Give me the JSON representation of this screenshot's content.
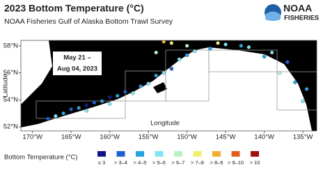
{
  "header": {
    "title": "2023 Bottom Temperature (°C)",
    "subtitle": "NOAA Fisheries Gulf of Alaska Bottom Trawl Survey",
    "logo_top": "NOAA",
    "logo_bottom": "FISHERIES"
  },
  "map": {
    "annotation_line1": "May 21 –",
    "annotation_line2": "Aug 04, 2023",
    "x_label": "Longitude",
    "y_label": "Latitude",
    "xlim": [
      -171.5,
      -133.2
    ],
    "ylim": [
      51.7,
      58.4
    ],
    "xticks": [
      {
        "value": -170,
        "label": "170°W"
      },
      {
        "value": -165,
        "label": "165°W"
      },
      {
        "value": -160,
        "label": "160°W"
      },
      {
        "value": -155,
        "label": "155°W"
      },
      {
        "value": -150,
        "label": "150°W"
      },
      {
        "value": -145,
        "label": "145°W"
      },
      {
        "value": -140,
        "label": "140°W"
      },
      {
        "value": -135,
        "label": "135°W"
      }
    ],
    "yticks": [
      {
        "value": 52,
        "label": "52°N"
      },
      {
        "value": 54,
        "label": "54°N"
      },
      {
        "value": 56,
        "label": "56°N"
      },
      {
        "value": 58,
        "label": "58°N"
      }
    ]
  },
  "legend": {
    "title": "Bottom Temperature (°C)",
    "items": [
      {
        "label": "≤ 3",
        "color": "#14148a",
        "stations": [
          [
            -163,
            53.6
          ],
          [
            -160,
            54.2
          ]
        ]
      },
      {
        "label": "> 3–4",
        "color": "#1f5fd0",
        "stations": [
          [
            -168,
            52.6
          ],
          [
            -165,
            53.3
          ],
          [
            -162,
            53.8
          ],
          [
            -158,
            54.6
          ],
          [
            -152,
            56.3
          ],
          [
            -137,
            56.8
          ]
        ]
      },
      {
        "label": "> 4–5",
        "color": "#2aa3e2",
        "stations": [
          [
            -166,
            53.0
          ],
          [
            -164,
            53.4
          ],
          [
            -161,
            53.9
          ],
          [
            -159,
            54.3
          ],
          [
            -156,
            55.0
          ],
          [
            -154,
            55.8
          ],
          [
            -150,
            57.3
          ],
          [
            -147,
            57.8
          ],
          [
            -143,
            58.0
          ],
          [
            -140,
            57.2
          ],
          [
            -136,
            55.3
          ],
          [
            -134.5,
            54.8
          ]
        ]
      },
      {
        "label": "> 5–6",
        "color": "#7fe6f2",
        "stations": [
          [
            -167,
            52.8
          ],
          [
            -163,
            53.2
          ],
          [
            -160,
            53.7
          ],
          [
            -157,
            54.5
          ],
          [
            -155,
            55.2
          ],
          [
            -153,
            56.0
          ],
          [
            -151,
            57.0
          ],
          [
            -149,
            57.6
          ],
          [
            -145,
            58.1
          ],
          [
            -142,
            57.9
          ],
          [
            -139,
            57.5
          ],
          [
            -135,
            53.9
          ]
        ]
      },
      {
        "label": "> 6–7",
        "color": "#bdf0c2",
        "stations": [
          [
            -154,
            57.5
          ],
          [
            -150,
            58.0
          ],
          [
            -138,
            56.0
          ]
        ]
      },
      {
        "label": "> 7–8",
        "color": "#f2ee6e",
        "stations": [
          [
            -152,
            58.2
          ],
          [
            -146,
            58.2
          ]
        ]
      },
      {
        "label": "> 8–9",
        "color": "#f0b030",
        "stations": [
          [
            -153,
            58.3
          ]
        ]
      },
      {
        "label": "> 9–10",
        "color": "#e06020",
        "stations": []
      },
      {
        "label": "> 10",
        "color": "#a01010",
        "stations": []
      }
    ]
  }
}
